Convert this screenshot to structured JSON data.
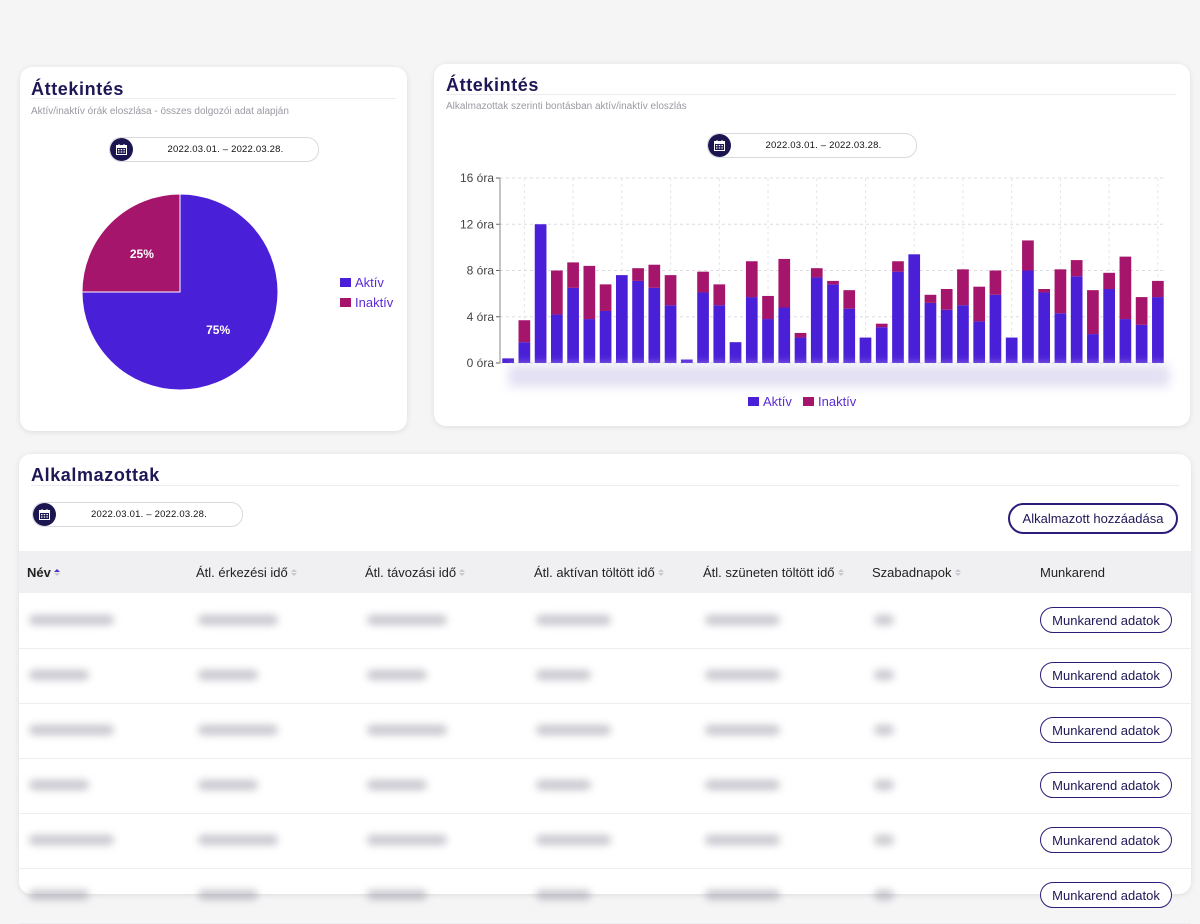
{
  "colors": {
    "active": "#4a1fd8",
    "inactive": "#a5156b",
    "accent": "#1b1650"
  },
  "pie_card": {
    "title": "Áttekintés",
    "subtitle": "Aktív/inaktív órák eloszlása - összes dolgozói adat alapján",
    "date_range": "2022.03.01. – 2022.03.28.",
    "calendar_icon": "calendar-icon"
  },
  "bar_card": {
    "title": "Áttekintés",
    "subtitle": "Alkalmazottak szerinti bontásban aktív/inaktív eloszlás",
    "date_range": "2022.03.01. – 2022.03.28.",
    "calendar_icon": "calendar-icon"
  },
  "chart_data": [
    {
      "type": "pie",
      "title": "",
      "slices": [
        {
          "name": "Aktív",
          "value": 75,
          "label": "75%"
        },
        {
          "name": "Inaktív",
          "value": 25,
          "label": "25%"
        }
      ],
      "legend": [
        "Aktív",
        "Inaktív"
      ],
      "legend_position": "right"
    },
    {
      "type": "bar",
      "stacked": true,
      "title": "",
      "xlabel": "",
      "ylabel": "",
      "ylim": [
        0,
        16
      ],
      "yticks": [
        "0 óra",
        "4 óra",
        "8 óra",
        "12 óra",
        "16 óra"
      ],
      "grid": true,
      "legend_position": "bottom",
      "series": [
        {
          "name": "Aktív",
          "values": [
            0.4,
            1.8,
            12,
            4.2,
            6.5,
            3.8,
            4.5,
            7.6,
            7.1,
            6.5,
            5,
            0.3,
            6.1,
            5,
            1.8,
            5.7,
            3.8,
            4.8,
            2.2,
            7.4,
            6.8,
            4.7,
            2.2,
            3.1,
            7.9,
            9.4,
            5.2,
            4.6,
            5,
            3.6,
            5.9,
            2.2,
            8,
            6.1,
            4.3,
            7.5,
            2.5,
            6.4,
            3.8,
            3.3,
            5.7
          ]
        },
        {
          "name": "Inaktív",
          "values": [
            0,
            1.9,
            0,
            3.8,
            2.2,
            4.6,
            2.3,
            0,
            1.1,
            2,
            2.6,
            0,
            1.8,
            1.8,
            0,
            3.1,
            2,
            4.2,
            0.4,
            0.8,
            0.3,
            1.6,
            0,
            0.3,
            0.9,
            0,
            0.7,
            1.8,
            3.1,
            3,
            2.1,
            0,
            2.6,
            0.3,
            3.8,
            1.4,
            3.8,
            1.4,
            5.4,
            2.4,
            1.4
          ]
        }
      ],
      "legend": [
        "Aktív",
        "Inaktív"
      ]
    }
  ],
  "employees": {
    "title": "Alkalmazottak",
    "date_range": "2022.03.01. – 2022.03.28.",
    "add_button": "Alkalmazott hozzáadása",
    "columns": [
      "Név",
      "Átl. érkezési idő",
      "Átl. távozási idő",
      "Átl. aktívan töltött idő",
      "Átl. szüneten töltött idő",
      "Szabadnapok",
      "Munkarend"
    ],
    "sorted_column": "Név",
    "row_button": "Munkarend adatok",
    "row_count": 5
  }
}
